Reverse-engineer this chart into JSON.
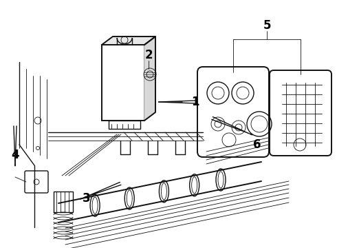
{
  "bg_color": "#ffffff",
  "line_color": "#111111",
  "label_color": "#000000",
  "figsize": [
    4.9,
    3.6
  ],
  "dpi": 100,
  "xlim": [
    0,
    490
  ],
  "ylim": [
    0,
    360
  ]
}
